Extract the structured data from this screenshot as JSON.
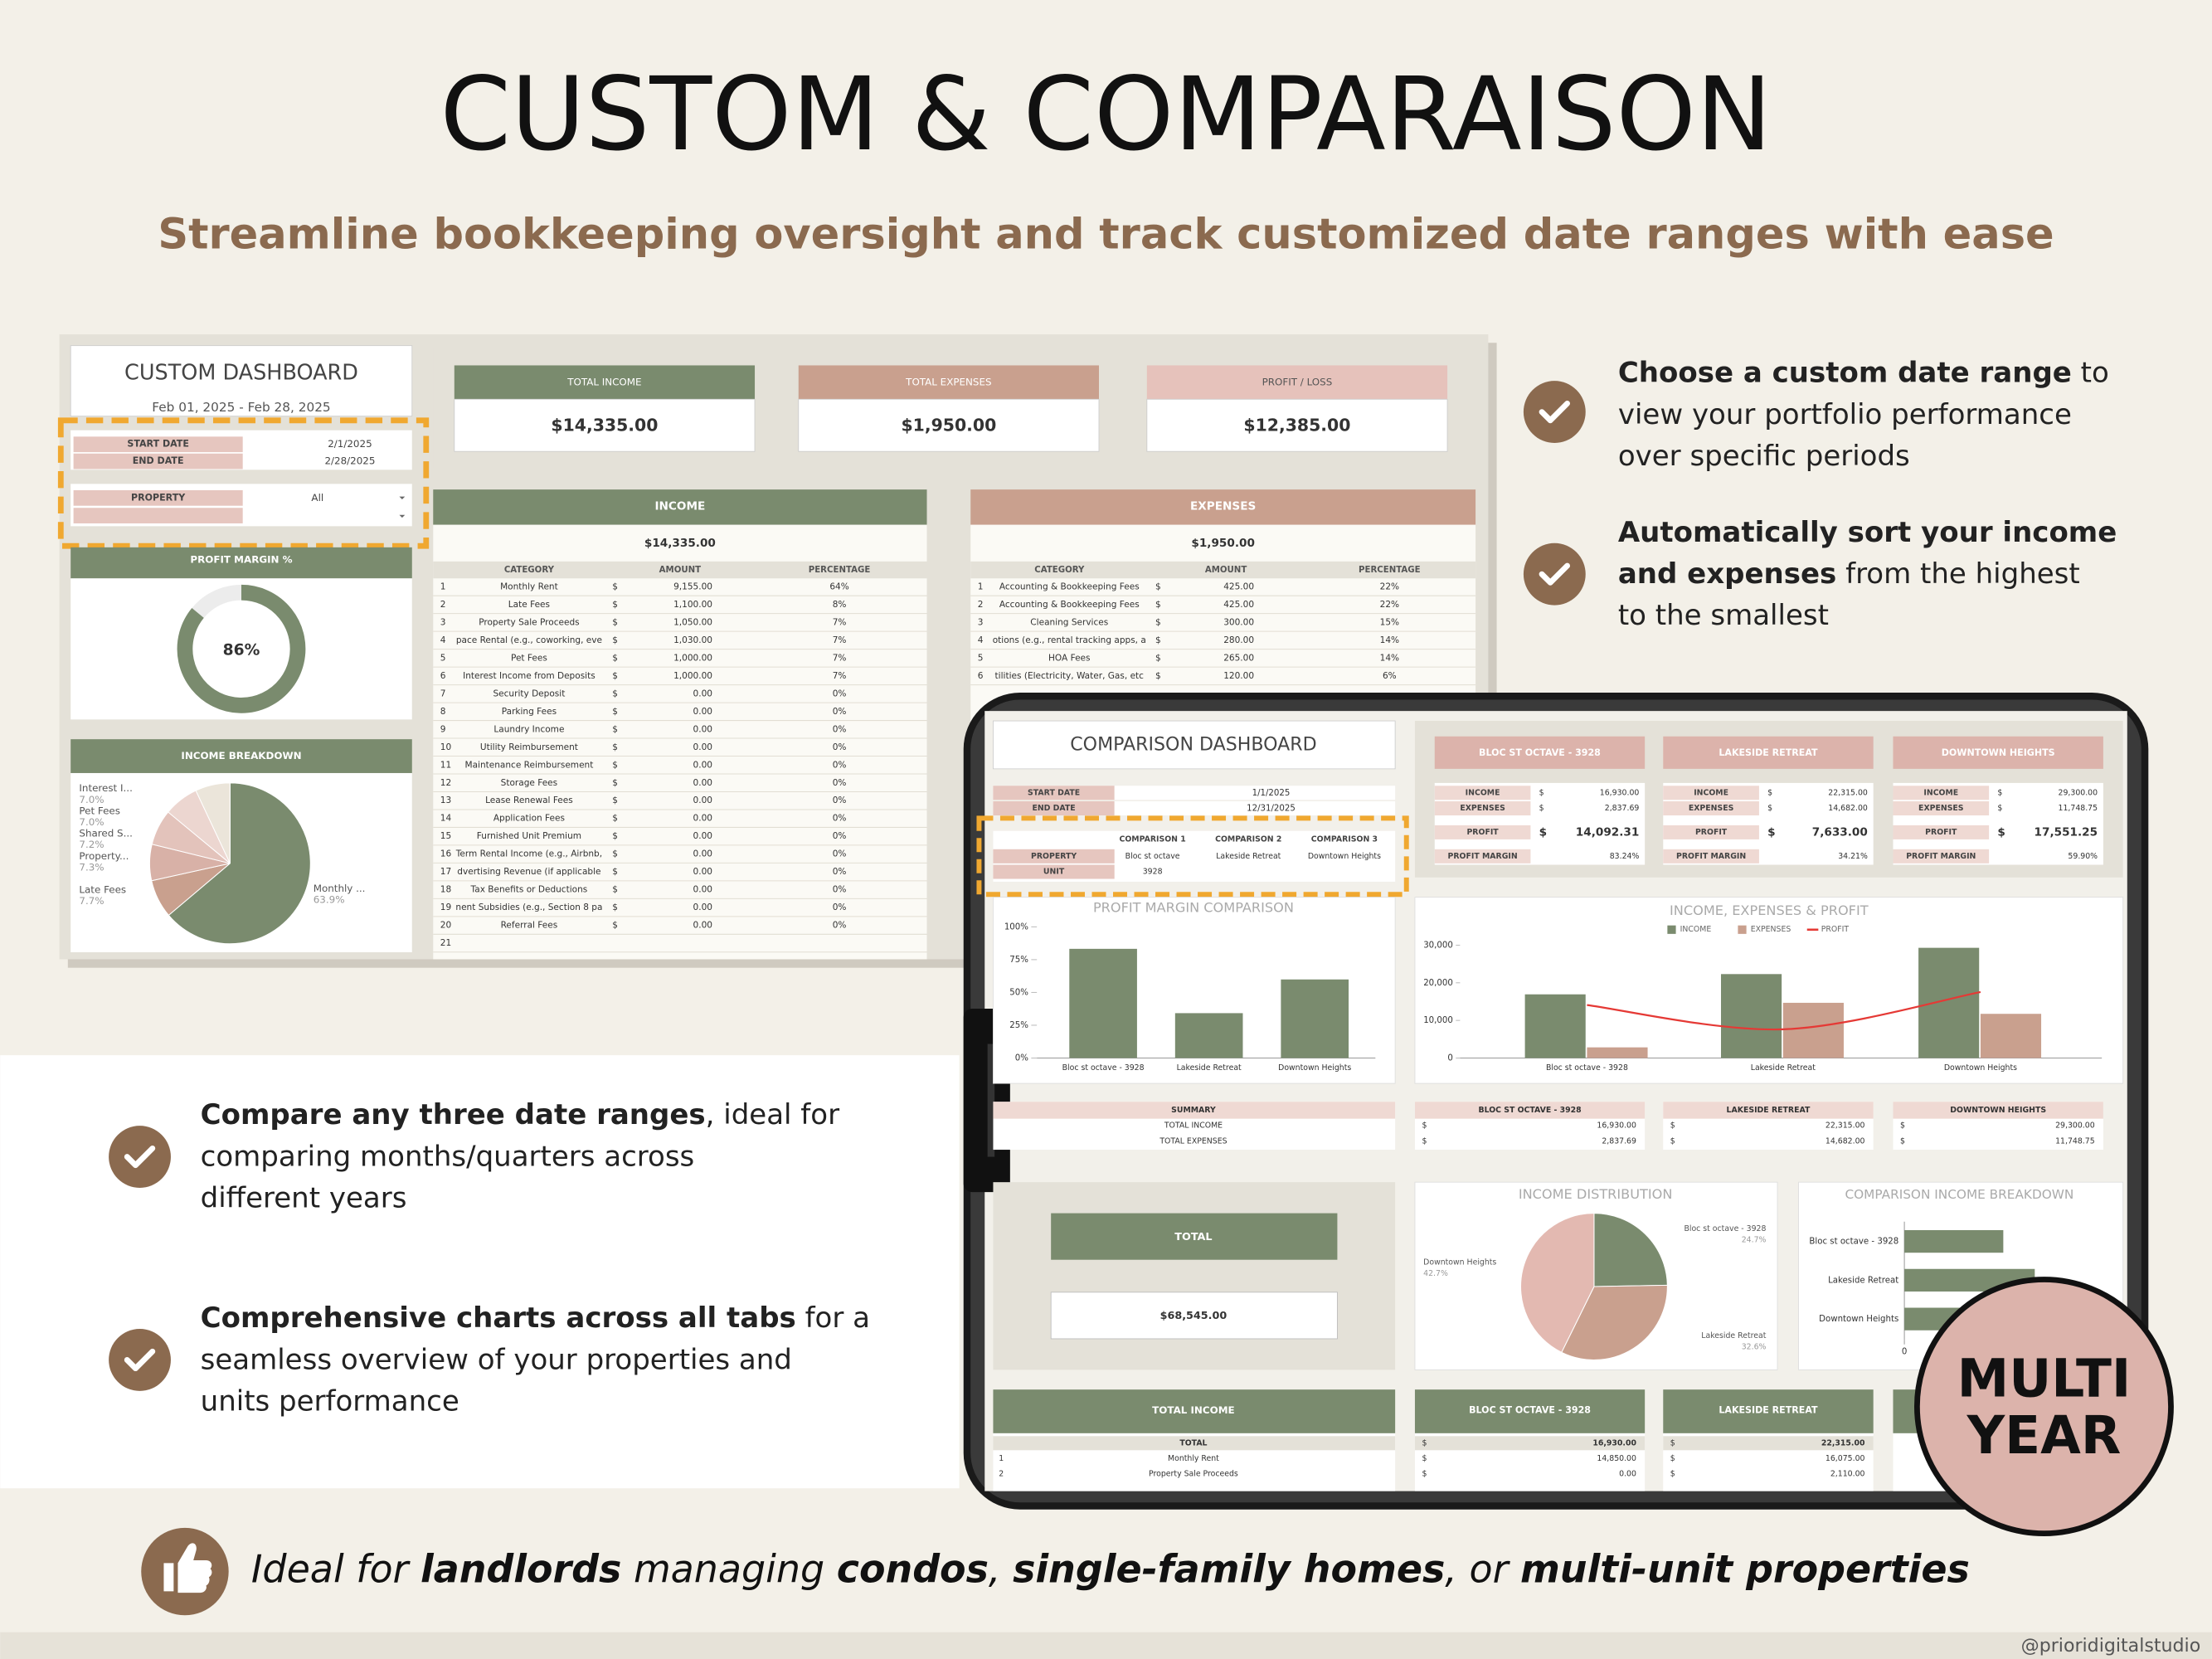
{
  "header": {
    "title": "CUSTOM & COMPARAISON",
    "subtitle": "Streamline bookkeeping oversight and track customized date ranges with ease"
  },
  "features": [
    {
      "lines": [
        [
          {
            "text": "Choose a custom date range",
            "bold": true
          },
          {
            "text": " to"
          }
        ],
        [
          {
            "text": "view your portfolio performance"
          }
        ],
        [
          {
            "text": "over specific periods"
          }
        ]
      ]
    },
    {
      "lines": [
        [
          {
            "text": "Automatically sort your income",
            "bold": true
          }
        ],
        [
          {
            "text": "and expenses",
            "bold": true
          },
          {
            "text": " from the highest"
          }
        ],
        [
          {
            "text": "to the smallest"
          }
        ]
      ]
    },
    {
      "lines": [
        [
          {
            "text": "Compare any three date ranges",
            "bold": true
          },
          {
            "text": ", ideal for"
          }
        ],
        [
          {
            "text": "comparing months/quarters across"
          }
        ],
        [
          {
            "text": "different years"
          }
        ]
      ]
    },
    {
      "lines": [
        [
          {
            "text": "Comprehensive charts across all tabs",
            "bold": true
          },
          {
            "text": " for a"
          }
        ],
        [
          {
            "text": "seamless overview of your properties and"
          }
        ],
        [
          {
            "text": "units performance"
          }
        ]
      ]
    }
  ],
  "footer": {
    "segments": [
      {
        "text": "Ideal for "
      },
      {
        "text": "landlords",
        "bold": true
      },
      {
        "text": " managing "
      },
      {
        "text": "condos",
        "bold": true
      },
      {
        "text": ", "
      },
      {
        "text": "single-family homes",
        "bold": true
      },
      {
        "text": ", or "
      },
      {
        "text": "multi-unit properties",
        "bold": true
      }
    ],
    "credit": "@prioridigitalstudio"
  },
  "badge": {
    "lines": [
      "MULTI",
      "YEAR"
    ]
  },
  "custom_dashboard": {
    "title": "CUSTOM DASHBOARD",
    "date_range": "Feb 01, 2025 - Feb 28, 2025",
    "filters": [
      [
        "START DATE",
        "2/1/2025"
      ],
      [
        "END DATE",
        "2/28/2025"
      ],
      [
        "PROPERTY",
        "All"
      ]
    ],
    "kpis": [
      {
        "label": "TOTAL INCOME",
        "value": "$14,335.00"
      },
      {
        "label": "TOTAL EXPENSES",
        "value": "$1,950.00"
      },
      {
        "label": "PROFIT / LOSS",
        "value": "$12,385.00"
      }
    ],
    "profit_margin": {
      "title": "PROFIT MARGIN %",
      "value": 86,
      "value_label": "86%",
      "color": "#7a8b6e"
    },
    "income_breakdown": {
      "type": "pie",
      "title": "INCOME BREAKDOWN",
      "categories": [
        "Monthly ...",
        "Late Fees",
        "Property...",
        "Shared S...",
        "Pet Fees",
        "Interest I..."
      ],
      "values": [
        63.9,
        7.7,
        7.3,
        7.2,
        7.0,
        7.0
      ],
      "value_labels": [
        "63.9%",
        "7.7%",
        "7.3%",
        "7.2%",
        "7.0%",
        "7.0%"
      ],
      "colors": [
        "#7a8b6e",
        "#c9a08e",
        "#d8b1a7",
        "#e3c3bb",
        "#ecd6d0",
        "#ebe5da"
      ]
    },
    "income_table": {
      "title": "INCOME",
      "total": "$14,335.00",
      "columns": [
        "CATEGORY",
        "AMOUNT",
        "PERCENTAGE"
      ],
      "rows": [
        [
          "1",
          "Monthly Rent",
          "$",
          "9,155.00",
          "64%"
        ],
        [
          "2",
          "Late Fees",
          "$",
          "1,100.00",
          "8%"
        ],
        [
          "3",
          "Property Sale Proceeds",
          "$",
          "1,050.00",
          "7%"
        ],
        [
          "4",
          "pace Rental (e.g., coworking, eve",
          "$",
          "1,030.00",
          "7%"
        ],
        [
          "5",
          "Pet Fees",
          "$",
          "1,000.00",
          "7%"
        ],
        [
          "6",
          "Interest Income from Deposits",
          "$",
          "1,000.00",
          "7%"
        ],
        [
          "7",
          "Security Deposit",
          "$",
          "0.00",
          "0%"
        ],
        [
          "8",
          "Parking Fees",
          "$",
          "0.00",
          "0%"
        ],
        [
          "9",
          "Laundry Income",
          "$",
          "0.00",
          "0%"
        ],
        [
          "10",
          "Utility Reimbursement",
          "$",
          "0.00",
          "0%"
        ],
        [
          "11",
          "Maintenance Reimbursement",
          "$",
          "0.00",
          "0%"
        ],
        [
          "12",
          "Storage Fees",
          "$",
          "0.00",
          "0%"
        ],
        [
          "13",
          "Lease Renewal Fees",
          "$",
          "0.00",
          "0%"
        ],
        [
          "14",
          "Application Fees",
          "$",
          "0.00",
          "0%"
        ],
        [
          "15",
          "Furnished Unit Premium",
          "$",
          "0.00",
          "0%"
        ],
        [
          "16",
          "Term Rental Income (e.g., Airbnb,",
          "$",
          "0.00",
          "0%"
        ],
        [
          "17",
          "dvertising Revenue (if applicable",
          "$",
          "0.00",
          "0%"
        ],
        [
          "18",
          "Tax Benefits or Deductions",
          "$",
          "0.00",
          "0%"
        ],
        [
          "19",
          "nent Subsidies (e.g., Section 8 pa",
          "$",
          "0.00",
          "0%"
        ],
        [
          "20",
          "Referral Fees",
          "$",
          "0.00",
          "0%"
        ],
        [
          "21"
        ]
      ]
    },
    "expense_table": {
      "title": "EXPENSES",
      "total": "$1,950.00",
      "columns": [
        "CATEGORY",
        "AMOUNT",
        "PERCENTAGE"
      ],
      "rows": [
        [
          "1",
          "Accounting & Bookkeeping Fees",
          "$",
          "425.00",
          "22%"
        ],
        [
          "2",
          "Accounting & Bookkeeping Fees",
          "$",
          "425.00",
          "22%"
        ],
        [
          "3",
          "Cleaning Services",
          "$",
          "300.00",
          "15%"
        ],
        [
          "4",
          "otions (e.g., rental tracking apps, a",
          "$",
          "280.00",
          "14%"
        ],
        [
          "5",
          "HOA Fees",
          "$",
          "265.00",
          "14%"
        ],
        [
          "6",
          "tilities (Electricity, Water, Gas, etc",
          "$",
          "120.00",
          "6%"
        ]
      ]
    }
  },
  "comparison_dashboard": {
    "title": "COMPARISON DASHBOARD",
    "dates": [
      [
        "START DATE",
        "1/1/2025"
      ],
      [
        "END DATE",
        "12/31/2025"
      ]
    ],
    "selectors": {
      "columns": [
        "COMPARISON 1",
        "COMPARISON 2",
        "COMPARISON 3"
      ],
      "rows": [
        {
          "label": "PROPERTY",
          "values": [
            "Bloc st octave",
            "Lakeside Retreat",
            "Downtown Heights"
          ]
        },
        {
          "label": "UNIT",
          "values": [
            "3928"
          ]
        }
      ]
    },
    "currency": "$",
    "property_labels": [
      "INCOME",
      "EXPENSES",
      "PROFIT",
      "PROFIT MARGIN"
    ],
    "properties": [
      {
        "name": "BLOC ST OCTAVE - 3928",
        "income": "16,930.00",
        "expenses": "2,837.69",
        "profit": "14,092.31",
        "margin": "83.24%"
      },
      {
        "name": "LAKESIDE RETREAT",
        "income": "22,315.00",
        "expenses": "14,682.00",
        "profit": "7,633.00",
        "margin": "34.21%"
      },
      {
        "name": "DOWNTOWN HEIGHTS",
        "income": "29,300.00",
        "expenses": "11,748.75",
        "profit": "17,551.25",
        "margin": "59.90%"
      }
    ],
    "profit_margin_chart": {
      "type": "bar",
      "title": "PROFIT MARGIN COMPARISON",
      "categories": [
        "Bloc st octave - 3928",
        "Lakeside Retreat",
        "Downtown Heights"
      ],
      "values": [
        83.24,
        34.21,
        59.9
      ],
      "color": "#7a8b6e",
      "ylim": [
        0,
        100
      ],
      "yticks": [
        {
          "value": 0,
          "label": "0%"
        },
        {
          "value": 25,
          "label": "25%"
        },
        {
          "value": 50,
          "label": "50%"
        },
        {
          "value": 75,
          "label": "75%"
        },
        {
          "value": 100,
          "label": "100%"
        }
      ]
    },
    "income_chart": {
      "type": "bar",
      "title": "INCOME, EXPENSES & PROFIT",
      "categories": [
        "Bloc st octave - 3928",
        "Lakeside Retreat",
        "Downtown Heights"
      ],
      "series": [
        {
          "name": "INCOME",
          "color": "#7a8b6e",
          "values": [
            16930,
            22315,
            29300
          ]
        },
        {
          "name": "EXPENSES",
          "color": "#c9a08e",
          "values": [
            2837.69,
            14682,
            11748.75
          ]
        },
        {
          "name": "PROFIT",
          "color": "#e53935",
          "type": "line",
          "values": [
            14092.31,
            7633,
            17551.25
          ]
        }
      ],
      "ylim": [
        0,
        30000
      ],
      "yticks": [
        0,
        {
          "value": 10000,
          "label": "10,000"
        },
        {
          "value": 20000,
          "label": "20,000"
        },
        {
          "value": 30000,
          "label": "30,000"
        }
      ]
    },
    "summary": {
      "title": "SUMMARY",
      "rows": [
        "TOTAL INCOME",
        "TOTAL EXPENSES"
      ]
    },
    "total": {
      "label": "TOTAL",
      "value": "$68,545.00"
    },
    "income_distribution": {
      "type": "pie",
      "title": "INCOME DISTRIBUTION",
      "categories": [
        "Bloc st octave - 3928",
        "Lakeside Retreat",
        "Downtown Heights"
      ],
      "values": [
        24.7,
        32.6,
        42.7
      ],
      "value_labels": [
        "24.7%",
        "32.6%",
        "42.7%"
      ],
      "colors": [
        "#7a8b6e",
        "#c9a08e",
        "#e3b9b1"
      ]
    },
    "income_breakdown": {
      "type": "bar",
      "orientation": "horizontal",
      "title": "COMPARISON INCOME BREAKDOWN",
      "categories": [
        "Bloc st octave - 3928",
        "Lakeside Retreat",
        "Downtown Heights"
      ],
      "values": [
        16930,
        22315,
        29300
      ],
      "color": "#7a8b6e",
      "xlim": [
        0,
        35000
      ],
      "xticks": [
        0
      ]
    },
    "bottom_table": {
      "title": "TOTAL INCOME",
      "rows": [
        [
          "TOTAL"
        ],
        [
          "1",
          "Monthly Rent"
        ],
        [
          "2",
          "Property Sale Proceeds"
        ]
      ],
      "columns": [
        {
          "name": "BLOC ST OCTAVE - 3928",
          "values": [
            "16,930.00",
            "14,850.00",
            "0.00"
          ]
        },
        {
          "name": "LAKESIDE RETREAT",
          "values": [
            "22,315.00",
            "16,075.00",
            "2,110.00"
          ]
        }
      ]
    }
  }
}
